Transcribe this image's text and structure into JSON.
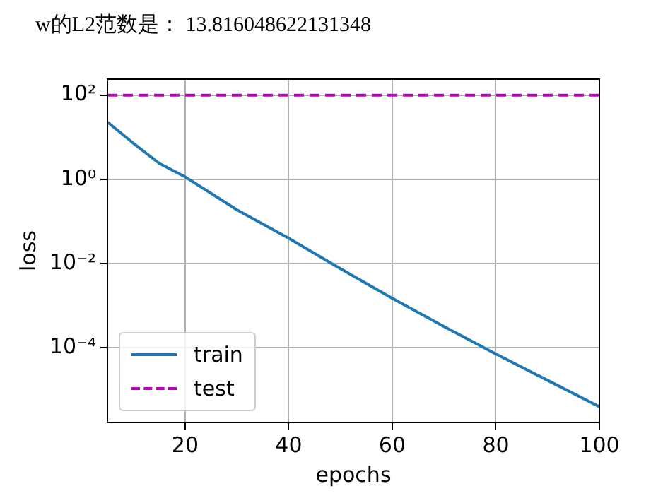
{
  "chart_data": {
    "type": "line",
    "title": "w的L2范数是： 13.816048622131348",
    "xlabel": "epochs",
    "ylabel": "loss",
    "log": "y",
    "grid": true,
    "legend": "bottom left",
    "marker": "none",
    "xlim": [
      5,
      100
    ],
    "xticks": [
      20,
      40,
      60,
      80,
      100
    ],
    "ylim": [
      1.7e-06,
      240
    ],
    "yticks": [
      {
        "value": 0.0001,
        "label": "10⁻⁴"
      },
      {
        "value": 0.01,
        "label": "10⁻²"
      },
      {
        "value": 1,
        "label": "10⁰"
      },
      {
        "value": 100,
        "label": "10²"
      }
    ],
    "x": [
      5,
      10,
      15,
      20,
      30,
      40,
      50,
      60,
      70,
      80,
      90,
      100
    ],
    "series": [
      {
        "name": "train",
        "color": "#1f77b4",
        "line_style": "solid",
        "values": [
          23,
          7.2,
          2.4,
          1.15,
          0.19,
          0.04,
          0.0076,
          0.0015,
          0.00032,
          7.2e-05,
          1.7e-05,
          4e-06
        ]
      },
      {
        "name": "test",
        "color": "#bf00bf",
        "line_style": "dashed",
        "values": [
          100,
          100,
          100,
          100,
          100,
          100,
          100,
          100,
          100,
          100,
          100,
          100
        ]
      }
    ]
  }
}
